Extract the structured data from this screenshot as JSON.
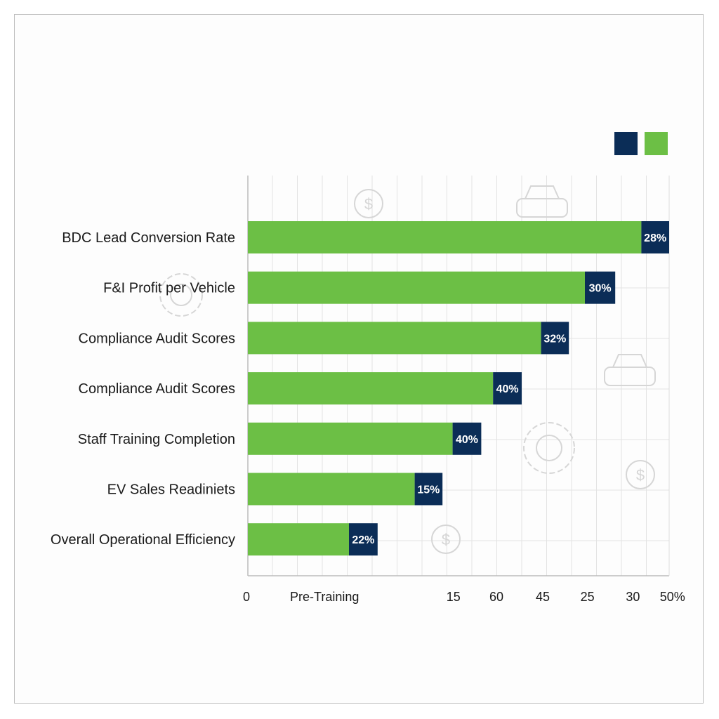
{
  "chart_data": {
    "type": "bar",
    "orientation": "horizontal",
    "stacked": true,
    "title": "",
    "xlabel": "",
    "ylabel": "",
    "xlim": [
      0,
      50
    ],
    "grid": true,
    "legend_placement": "top-right",
    "colors": {
      "segment_1": "#6cbf45",
      "segment_2": "#0b2d57"
    },
    "categories": [
      "BDC Lead Conversion Rate",
      "F&I Profit per Vehicle",
      "Compliance Audit Scores",
      "Compliance Audit Scores",
      "Staff Training Completion",
      "EV Sales Readiniets",
      "Overall Operational Efficiency"
    ],
    "series": [
      {
        "color": "#6cbf45",
        "values": [
          46.7,
          40,
          34.8,
          29.1,
          24.3,
          19.8,
          12
        ]
      },
      {
        "color": "#0b2d57",
        "values": [
          3.3,
          3.6,
          3.3,
          3.4,
          3.4,
          3.3,
          3.4
        ]
      }
    ],
    "data_labels": [
      "28%",
      "30%",
      "32%",
      "40%",
      "40%",
      "15%",
      "22%"
    ],
    "x_tick_labels": [
      "0",
      "Pre-Training",
      "15",
      "60",
      "45",
      "25",
      "30",
      "50%"
    ]
  }
}
